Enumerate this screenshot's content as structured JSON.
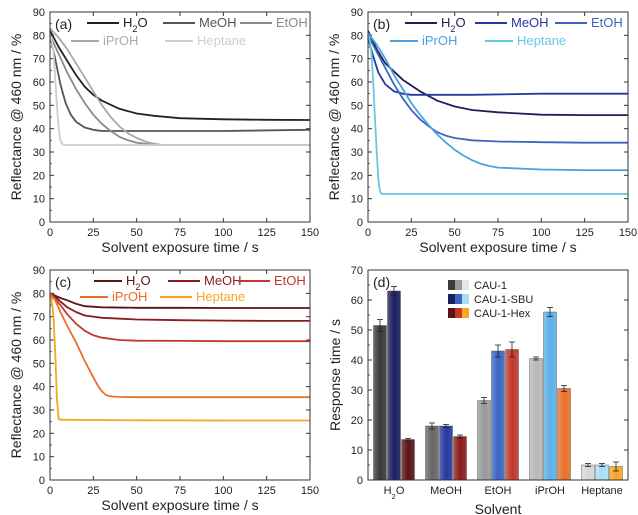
{
  "chart_data": [
    {
      "panel": "(a)",
      "type": "line",
      "xlabel": "Solvent exposure time / s",
      "ylabel": "Reflectance @ 460 nm / %",
      "xlim": [
        0,
        150
      ],
      "ylim": [
        0,
        90
      ],
      "xticks": [
        "0",
        "25",
        "50",
        "75",
        "100",
        "125",
        "150"
      ],
      "yticks": [
        "0",
        "10",
        "20",
        "30",
        "40",
        "50",
        "60",
        "70",
        "80",
        "90"
      ],
      "legend_placement": "top",
      "series": [
        {
          "name": "H2O",
          "legend_main": "H",
          "legend_sub": "2",
          "legend_tail": "O",
          "color": "#222222",
          "x": [
            0,
            5,
            10,
            15,
            20,
            25,
            30,
            40,
            50,
            60,
            75,
            100,
            125,
            150
          ],
          "y": [
            82,
            75,
            69,
            63,
            58,
            54.5,
            52,
            48.5,
            46.5,
            45.5,
            44.5,
            44,
            43.8,
            43.7
          ]
        },
        {
          "name": "MeOH",
          "color": "#555555",
          "x": [
            0,
            3,
            6,
            9,
            12,
            15,
            20,
            25,
            30,
            40,
            60,
            100,
            150
          ],
          "y": [
            80,
            70,
            59,
            51,
            46,
            43,
            40.5,
            39.5,
            39,
            39,
            39,
            39,
            39.5
          ]
        },
        {
          "name": "EtOH",
          "color": "#8a8a8a",
          "x": [
            0,
            5,
            10,
            15,
            20,
            25,
            30,
            35,
            40,
            45,
            50,
            55,
            60,
            75,
            100,
            150
          ],
          "y": [
            80,
            72,
            64,
            57,
            51,
            46,
            42,
            39,
            36.5,
            35,
            34,
            33.5,
            33,
            33,
            33,
            33
          ]
        },
        {
          "name": "iPrOH",
          "color": "#a8a8a8",
          "x": [
            0,
            5,
            10,
            15,
            20,
            25,
            30,
            35,
            40,
            45,
            50,
            55,
            60,
            65,
            75,
            100,
            150
          ],
          "y": [
            83,
            79,
            74,
            68,
            62,
            56,
            50,
            45,
            41,
            38,
            36,
            34.5,
            33.5,
            33,
            33,
            33,
            33
          ]
        },
        {
          "name": "Heptane",
          "color": "#cdcdcd",
          "x": [
            0,
            1,
            2,
            3,
            4,
            5,
            6,
            7,
            8,
            10,
            20,
            50,
            100,
            150
          ],
          "y": [
            80,
            78,
            73,
            62,
            50,
            40,
            35,
            33.5,
            33,
            33,
            33,
            33,
            33,
            33
          ]
        }
      ]
    },
    {
      "panel": "(b)",
      "type": "line",
      "xlabel": "Solvent exposure time / s",
      "ylabel": "Reflectance @ 460 nm / %",
      "xlim": [
        0,
        150
      ],
      "ylim": [
        0,
        90
      ],
      "xticks": [
        "0",
        "25",
        "50",
        "75",
        "100",
        "125",
        "150"
      ],
      "yticks": [
        "0",
        "10",
        "20",
        "30",
        "40",
        "50",
        "60",
        "70",
        "80",
        "90"
      ],
      "legend_placement": "top",
      "series": [
        {
          "name": "H2O",
          "legend_main": "H",
          "legend_sub": "2",
          "legend_tail": "O",
          "color": "#1b1f5c",
          "x": [
            0,
            5,
            10,
            20,
            30,
            40,
            50,
            60,
            75,
            100,
            125,
            150
          ],
          "y": [
            82,
            74,
            68,
            61,
            56,
            52,
            49.5,
            48,
            47,
            46,
            45.8,
            45.8
          ]
        },
        {
          "name": "MeOH",
          "color": "#27389e",
          "x": [
            0,
            3,
            6,
            10,
            15,
            20,
            25,
            30,
            40,
            60,
            100,
            150
          ],
          "y": [
            79,
            71,
            64,
            59,
            56,
            55,
            54.5,
            54.5,
            54.5,
            54.5,
            55,
            55
          ]
        },
        {
          "name": "EtOH",
          "color": "#3a66c0",
          "x": [
            0,
            5,
            10,
            15,
            20,
            25,
            30,
            35,
            40,
            45,
            50,
            60,
            75,
            100,
            125,
            150
          ],
          "y": [
            80,
            73,
            66,
            59,
            53,
            48,
            44,
            41,
            38.5,
            37,
            36,
            35,
            34.5,
            34.2,
            34,
            34
          ]
        },
        {
          "name": "iPrOH",
          "color": "#4aa3df",
          "x": [
            0,
            5,
            10,
            15,
            20,
            25,
            30,
            35,
            40,
            45,
            50,
            55,
            60,
            65,
            70,
            75,
            100,
            125,
            150
          ],
          "y": [
            81,
            76,
            70,
            63,
            57,
            51,
            46,
            41.5,
            37.5,
            34,
            31,
            28.5,
            26.5,
            25,
            24,
            23.3,
            22.5,
            22.2,
            22.2
          ]
        },
        {
          "name": "Heptane",
          "color": "#66c8e6",
          "x": [
            0,
            1,
            2,
            3,
            4,
            5,
            6,
            7,
            8,
            10,
            20,
            50,
            100,
            150
          ],
          "y": [
            80,
            78,
            72,
            60,
            45,
            30,
            18,
            13,
            12,
            12,
            12,
            12,
            12,
            12
          ]
        }
      ]
    },
    {
      "panel": "(c)",
      "type": "line",
      "xlabel": "Solvent exposure time / s",
      "ylabel": "Reflectance @ 460 nm / %",
      "xlim": [
        0,
        150
      ],
      "ylim": [
        0,
        90
      ],
      "xticks": [
        "0",
        "25",
        "50",
        "75",
        "100",
        "125",
        "150"
      ],
      "yticks": [
        "0",
        "10",
        "20",
        "30",
        "40",
        "50",
        "60",
        "70",
        "80",
        "90"
      ],
      "legend_placement": "top",
      "series": [
        {
          "name": "H2O",
          "legend_main": "H",
          "legend_sub": "2",
          "legend_tail": "O",
          "color": "#5a1414",
          "x": [
            0,
            3,
            6,
            10,
            15,
            20,
            30,
            50,
            75,
            100,
            125,
            150
          ],
          "y": [
            80,
            79,
            78,
            77,
            75.5,
            74.5,
            74,
            73.8,
            73.8,
            73.7,
            73.7,
            73.7
          ]
        },
        {
          "name": "MeOH",
          "color": "#8c1c1c",
          "x": [
            0,
            3,
            6,
            10,
            15,
            20,
            30,
            50,
            75,
            100,
            125,
            150
          ],
          "y": [
            80,
            78.5,
            76.5,
            74,
            72,
            70.5,
            69.5,
            68.8,
            68.5,
            68.3,
            68.2,
            68.2
          ]
        },
        {
          "name": "EtOH",
          "color": "#c0392b",
          "x": [
            0,
            3,
            6,
            10,
            15,
            20,
            25,
            30,
            40,
            50,
            75,
            100,
            125,
            150
          ],
          "y": [
            79,
            77.5,
            75,
            71,
            67,
            64,
            62,
            61,
            60,
            59.7,
            59.6,
            59.5,
            59.5,
            59.5
          ]
        },
        {
          "name": "iPrOH",
          "color": "#e8702a",
          "x": [
            0,
            3,
            6,
            10,
            15,
            20,
            25,
            28,
            30,
            32,
            34,
            36,
            40,
            50,
            75,
            100,
            150
          ],
          "y": [
            80,
            77,
            72,
            66,
            59,
            51,
            44,
            40,
            38,
            36.5,
            36,
            35.8,
            35.6,
            35.5,
            35.5,
            35.5,
            35.5
          ]
        },
        {
          "name": "Heptane",
          "color": "#f5a623",
          "x": [
            0,
            1,
            2,
            3,
            4,
            5,
            7,
            10,
            50,
            100,
            150
          ],
          "y": [
            79,
            77,
            70,
            55,
            35,
            26,
            25.8,
            25.8,
            25.6,
            25.5,
            25.5
          ]
        }
      ]
    },
    {
      "panel": "(d)",
      "type": "bar",
      "xlabel": "Solvent",
      "ylabel": "Response time / s",
      "ylim": [
        0,
        70
      ],
      "yticks": [
        "0",
        "10",
        "20",
        "30",
        "40",
        "50",
        "60",
        "70"
      ],
      "categories": [
        "H2O",
        "MeOH",
        "EtOH",
        "iPrOH",
        "Heptane"
      ],
      "category_labels": [
        {
          "main": "H",
          "sub": "2",
          "tail": "O"
        },
        {
          "main": "MeOH"
        },
        {
          "main": "EtOH"
        },
        {
          "main": "iPrOH"
        },
        {
          "main": "Heptane"
        }
      ],
      "legend_placement": "top-center",
      "series": [
        {
          "name": "CAU-1",
          "colors": [
            "#3a3a3a",
            "#666666",
            "#9a9a9a",
            "#b8b8b8",
            "#d6d6d6"
          ],
          "values": [
            51.5,
            18,
            26.5,
            40.5,
            5
          ],
          "errors": [
            2,
            1,
            1,
            0.5,
            0.5
          ]
        },
        {
          "name": "CAU-1-SBU",
          "colors": [
            "#1b1f5c",
            "#27389e",
            "#3a66c0",
            "#5bb0e6",
            "#a9dff2"
          ],
          "values": [
            63,
            18,
            43,
            56,
            5
          ],
          "errors": [
            1.5,
            0.5,
            2,
            1.5,
            0.5
          ]
        },
        {
          "name": "CAU-1-Hex",
          "colors": [
            "#5a1414",
            "#8c1c1c",
            "#c0392b",
            "#e8702a",
            "#f5a623"
          ],
          "values": [
            13.5,
            14.5,
            43.5,
            30.5,
            4.5
          ],
          "errors": [
            0.3,
            0.5,
            2.5,
            1,
            1.5
          ]
        }
      ],
      "legend_swatches": [
        [
          "#3a3a3a",
          "#9a9a9a",
          "#e6e6e6"
        ],
        [
          "#1b1f5c",
          "#3a66c0",
          "#a9dff2"
        ],
        [
          "#5a1414",
          "#c0392b",
          "#f5a623"
        ]
      ]
    }
  ]
}
